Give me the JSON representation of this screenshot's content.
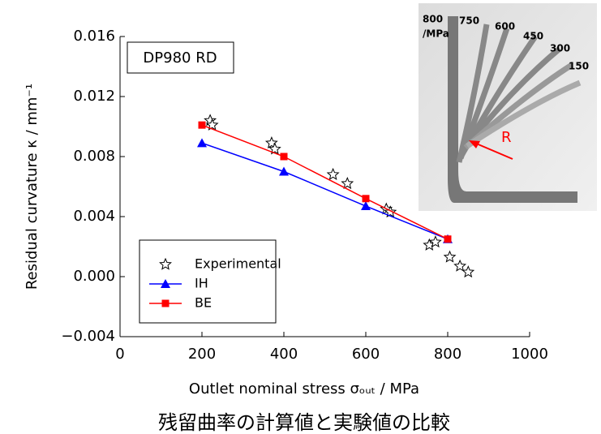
{
  "chart_data": {
    "type": "line",
    "annotation": "DP980 RD",
    "xlabel": "Outlet nominal stress σₒᵤₜ / MPa",
    "ylabel": "Residual curvature κ / mm⁻¹",
    "caption": "残留曲率の計算値と実験値の比較",
    "inset_labels": [
      "800",
      "/MPa",
      "750",
      "600",
      "450",
      "300",
      "150",
      "R"
    ],
    "xlim": [
      0,
      1000
    ],
    "xticks": [
      0,
      200,
      400,
      600,
      800,
      1000
    ],
    "ylim": [
      -0.004,
      0.016
    ],
    "yticks": [
      {
        "value": -0.004,
        "label": "−0.004"
      },
      {
        "value": 0,
        "label": "0.000"
      },
      0.004,
      0.008,
      0.012,
      0.016
    ],
    "grid": false,
    "legend": "lower left",
    "series": [
      {
        "name": "Experimental",
        "color": "#000000",
        "marker": "star",
        "connect": false,
        "x": [
          220,
          225,
          370,
          378,
          520,
          555,
          650,
          660,
          755,
          770,
          805,
          830,
          850
        ],
        "values": [
          0.0104,
          0.0101,
          0.0089,
          0.0085,
          0.0068,
          0.0062,
          0.0045,
          0.0043,
          0.0021,
          0.0023,
          0.0013,
          0.0007,
          0.0003
        ]
      },
      {
        "name": "IH",
        "color": "#0000ff",
        "marker": "triangle",
        "connect": true,
        "x": [
          200,
          400,
          600,
          800
        ],
        "values": [
          0.0089,
          0.007,
          0.0047,
          0.0025
        ]
      },
      {
        "name": "BE",
        "color": "#ff0000",
        "marker": "square",
        "connect": true,
        "x": [
          200,
          400,
          600,
          800
        ],
        "values": [
          0.0101,
          0.008,
          0.0052,
          0.0025
        ]
      }
    ]
  }
}
